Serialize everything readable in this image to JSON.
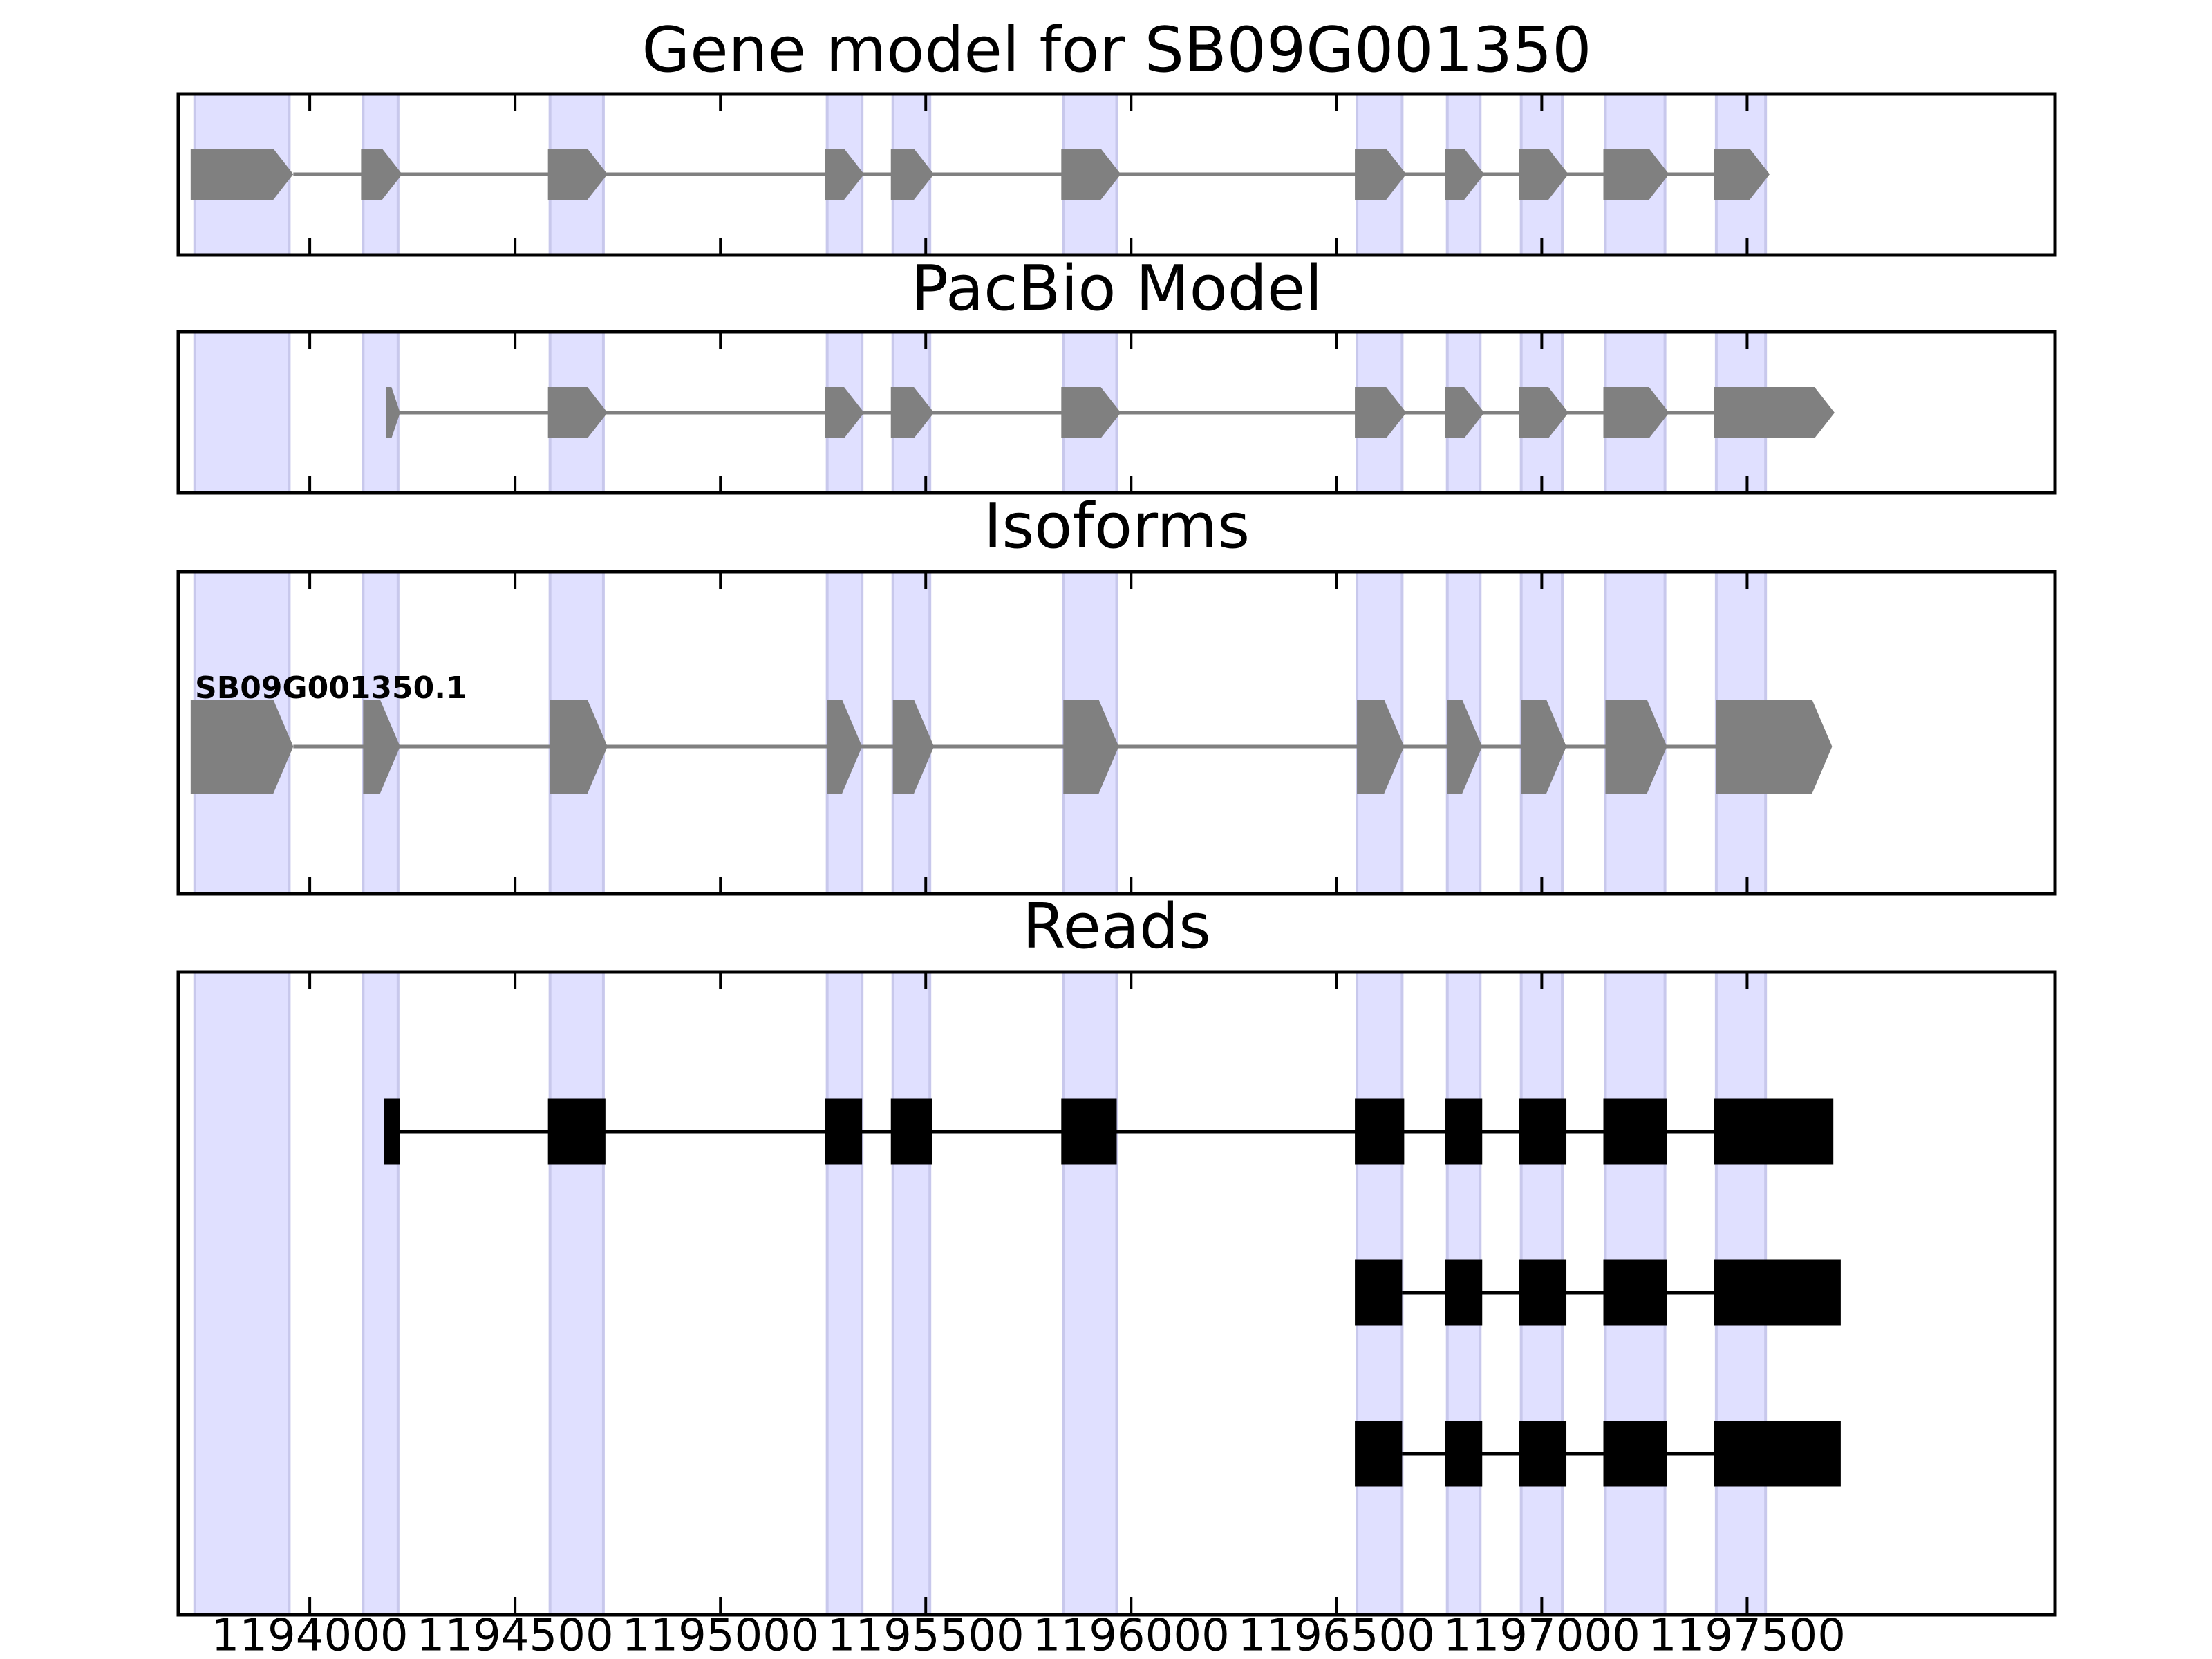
{
  "chart_data": {
    "type": "gene_tracks",
    "xlim": [
      1193680,
      1198250
    ],
    "xticks": [
      1194000,
      1194500,
      1195000,
      1195500,
      1196000,
      1196500,
      1197000,
      1197500
    ],
    "region_color": "#e0e0ff",
    "regions": [
      [
        1193720,
        1193950
      ],
      [
        1194130,
        1194215
      ],
      [
        1194585,
        1194715
      ],
      [
        1195260,
        1195345
      ],
      [
        1195420,
        1195510
      ],
      [
        1195835,
        1195965
      ],
      [
        1196550,
        1196660
      ],
      [
        1196770,
        1196850
      ],
      [
        1196950,
        1197050
      ],
      [
        1197155,
        1197300
      ],
      [
        1197425,
        1197545
      ]
    ],
    "panels": [
      {
        "title": "Gene model for SB09G001350",
        "style": "arrow",
        "color": "#808080",
        "tracks": [
          {
            "exons": [
              [
                1193710,
                1193960
              ],
              [
                1194125,
                1194225
              ],
              [
                1194580,
                1194725
              ],
              [
                1195255,
                1195350
              ],
              [
                1195415,
                1195520
              ],
              [
                1195830,
                1195975
              ],
              [
                1196545,
                1196670
              ],
              [
                1196765,
                1196860
              ],
              [
                1196945,
                1197065
              ],
              [
                1197150,
                1197310
              ],
              [
                1197420,
                1197555
              ]
            ]
          }
        ]
      },
      {
        "title": "PacBio Model",
        "style": "arrow",
        "color": "#808080",
        "tracks": [
          {
            "exons": [
              [
                1194185,
                1194220
              ],
              [
                1194580,
                1194725
              ],
              [
                1195255,
                1195350
              ],
              [
                1195415,
                1195520
              ],
              [
                1195830,
                1195975
              ],
              [
                1196545,
                1196670
              ],
              [
                1196765,
                1196860
              ],
              [
                1196945,
                1197065
              ],
              [
                1197150,
                1197310
              ],
              [
                1197420,
                1197713
              ]
            ]
          }
        ]
      },
      {
        "title": "Isoforms",
        "style": "arrow",
        "color": "#808080",
        "tracks": [
          {
            "name": "SB09G001350.1",
            "exons": [
              [
                1193710,
                1193960
              ],
              [
                1194130,
                1194220
              ],
              [
                1194585,
                1194725
              ],
              [
                1195260,
                1195345
              ],
              [
                1195420,
                1195520
              ],
              [
                1195835,
                1195970
              ],
              [
                1196550,
                1196665
              ],
              [
                1196770,
                1196855
              ],
              [
                1196950,
                1197060
              ],
              [
                1197155,
                1197305
              ],
              [
                1197425,
                1197707
              ]
            ]
          }
        ]
      },
      {
        "title": "Reads",
        "style": "block",
        "color": "#000000",
        "tracks": [
          {
            "exons": [
              [
                1194180,
                1194220
              ],
              [
                1194580,
                1194720
              ],
              [
                1195255,
                1195345
              ],
              [
                1195415,
                1195515
              ],
              [
                1195830,
                1195965
              ],
              [
                1196545,
                1196665
              ],
              [
                1196765,
                1196855
              ],
              [
                1196945,
                1197060
              ],
              [
                1197150,
                1197305
              ],
              [
                1197420,
                1197710
              ]
            ]
          },
          {
            "exons": [
              [
                1196545,
                1196660
              ],
              [
                1196765,
                1196855
              ],
              [
                1196945,
                1197060
              ],
              [
                1197150,
                1197305
              ],
              [
                1197420,
                1197728
              ]
            ]
          },
          {
            "exons": [
              [
                1196545,
                1196660
              ],
              [
                1196765,
                1196855
              ],
              [
                1196945,
                1197060
              ],
              [
                1197150,
                1197305
              ],
              [
                1197420,
                1197728
              ]
            ]
          }
        ]
      }
    ]
  }
}
